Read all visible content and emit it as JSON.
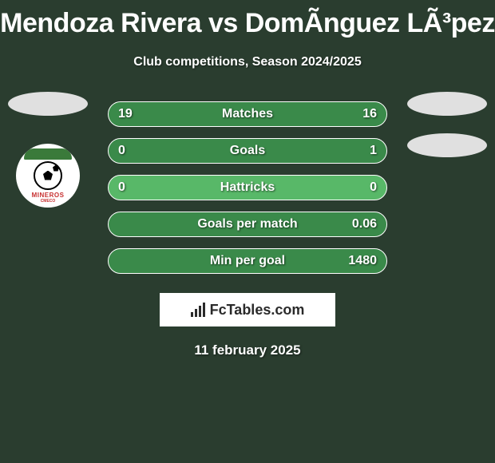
{
  "header": {
    "title": "Mendoza Rivera vs DomÃ­nguez LÃ³pez",
    "subtitle": "Club competitions, Season 2024/2025"
  },
  "club_logo": {
    "name": "MINEROS",
    "subname": "CMECO"
  },
  "stats": [
    {
      "label": "Matches",
      "left_value": "19",
      "right_value": "16",
      "left_fill_pct": 54,
      "right_fill_pct": 46,
      "bar_bg": "#58b868",
      "fill_bg": "#3a8a4a"
    },
    {
      "label": "Goals",
      "left_value": "0",
      "right_value": "1",
      "left_fill_pct": 0,
      "right_fill_pct": 100,
      "bar_bg": "#58b868",
      "fill_bg": "#3a8a4a"
    },
    {
      "label": "Hattricks",
      "left_value": "0",
      "right_value": "0",
      "left_fill_pct": 0,
      "right_fill_pct": 0,
      "bar_bg": "#58b868",
      "fill_bg": "#3a8a4a"
    },
    {
      "label": "Goals per match",
      "left_value": "",
      "right_value": "0.06",
      "left_fill_pct": 0,
      "right_fill_pct": 100,
      "bar_bg": "#58b868",
      "fill_bg": "#3a8a4a"
    },
    {
      "label": "Min per goal",
      "left_value": "",
      "right_value": "1480",
      "left_fill_pct": 0,
      "right_fill_pct": 100,
      "bar_bg": "#58b868",
      "fill_bg": "#3a8a4a"
    }
  ],
  "branding": {
    "text": "FcTables.com"
  },
  "footer": {
    "date": "11 february 2025"
  },
  "style": {
    "page_bg": "#2a3d2f",
    "title_color": "#ffffff",
    "bar_border": "#ffffff",
    "ellipse_color": "#e0e0e0",
    "logo_ring": "#ffffff",
    "logo_green": "#3a7a3a",
    "logo_red": "#c73030",
    "badge_bg": "#ffffff",
    "badge_text": "#2a2a2a"
  }
}
